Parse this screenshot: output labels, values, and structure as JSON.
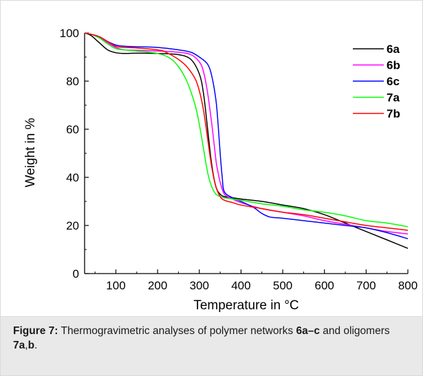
{
  "chart_data": {
    "type": "line",
    "xlabel": "Temperature in °C",
    "ylabel": "Weight in %",
    "xlim": [
      25,
      800
    ],
    "ylim": [
      0,
      100
    ],
    "xticks": [
      100,
      200,
      300,
      400,
      500,
      600,
      700,
      800
    ],
    "yticks": [
      0,
      20,
      40,
      60,
      80,
      100
    ],
    "legend_position": "top-right",
    "series": [
      {
        "name": "6a",
        "color": "#000000",
        "x": [
          25,
          40,
          60,
          80,
          100,
          120,
          150,
          200,
          250,
          280,
          300,
          310,
          320,
          330,
          340,
          350,
          360,
          380,
          400,
          450,
          500,
          550,
          600,
          650,
          700,
          750,
          800
        ],
        "y": [
          100,
          99,
          96,
          93,
          91.8,
          91.5,
          91.6,
          91.5,
          91,
          89,
          83,
          75,
          60,
          45,
          36,
          33,
          32,
          31.5,
          31,
          30,
          28.5,
          27,
          24.5,
          21,
          17.5,
          14,
          10.5
        ]
      },
      {
        "name": "6b",
        "color": "#ff00ff",
        "x": [
          25,
          40,
          60,
          80,
          100,
          120,
          150,
          200,
          250,
          280,
          300,
          310,
          320,
          330,
          340,
          345,
          350,
          360,
          380,
          400,
          450,
          500,
          550,
          600,
          650,
          700,
          750,
          800
        ],
        "y": [
          100,
          99.5,
          98,
          96,
          94,
          93,
          92.8,
          92.5,
          92,
          91,
          88,
          84,
          75,
          62,
          47,
          42,
          38,
          33,
          31,
          29.5,
          27,
          25.5,
          24,
          22,
          20.5,
          19,
          17.5,
          16.5
        ]
      },
      {
        "name": "6c",
        "color": "#0000ff",
        "x": [
          25,
          40,
          60,
          80,
          100,
          120,
          150,
          200,
          250,
          280,
          300,
          320,
          330,
          340,
          345,
          350,
          355,
          360,
          380,
          400,
          430,
          450,
          470,
          500,
          550,
          600,
          650,
          700,
          750,
          800
        ],
        "y": [
          100,
          99.5,
          98.5,
          96.5,
          95,
          94.5,
          94.3,
          94,
          93,
          92,
          90,
          87,
          82,
          72,
          62,
          50,
          40,
          34,
          31.5,
          30,
          27.5,
          25,
          23.5,
          23,
          22,
          21,
          20,
          19,
          17,
          14.5
        ]
      },
      {
        "name": "7a",
        "color": "#00ff00",
        "x": [
          25,
          40,
          60,
          80,
          100,
          120,
          150,
          200,
          230,
          250,
          270,
          290,
          300,
          310,
          320,
          330,
          340,
          350,
          360,
          380,
          400,
          450,
          500,
          550,
          600,
          650,
          700,
          750,
          800
        ],
        "y": [
          100,
          99.5,
          98,
          95.5,
          93.5,
          93,
          92.5,
          91.5,
          89.5,
          86,
          80,
          70,
          62,
          52,
          42,
          36,
          33,
          32,
          31.5,
          31,
          30.5,
          29,
          28,
          26.5,
          25.5,
          24,
          22,
          21,
          19.5
        ]
      },
      {
        "name": "7b",
        "color": "#ff0000",
        "x": [
          25,
          40,
          60,
          80,
          100,
          120,
          150,
          200,
          220,
          250,
          270,
          290,
          300,
          310,
          320,
          330,
          340,
          350,
          360,
          380,
          400,
          450,
          500,
          550,
          600,
          650,
          700,
          750,
          800
        ],
        "y": [
          100,
          99.5,
          98.5,
          96.5,
          94.5,
          94,
          93.8,
          93,
          92,
          89,
          86,
          81,
          76,
          68,
          56,
          44,
          36,
          32,
          30.5,
          29.5,
          28.5,
          27,
          25.5,
          24.5,
          23,
          21.5,
          20,
          19,
          18
        ]
      }
    ]
  },
  "caption": {
    "label": "Figure 7:",
    "text_1": " Thermogravimetric analyses of polymer networks ",
    "bold_1": "6a–c",
    "text_2": " and oligomers ",
    "bold_2": "7a",
    "text_3": ",",
    "bold_3": "b",
    "text_4": "."
  }
}
